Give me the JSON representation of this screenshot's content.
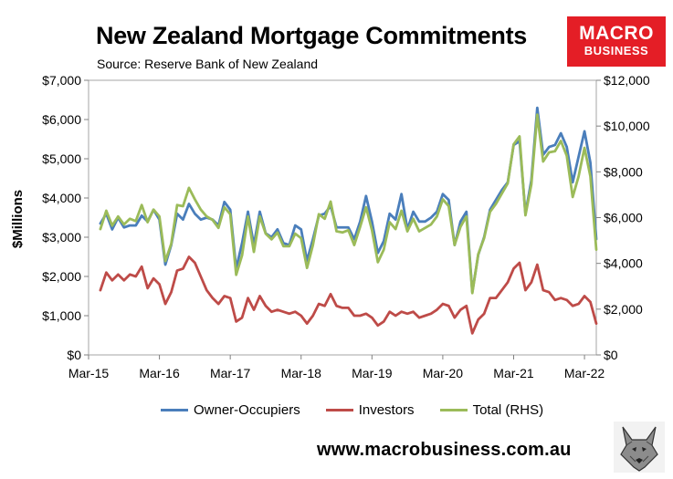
{
  "header": {
    "title": "New Zealand Mortgage Commitments",
    "subtitle": "Source: Reserve Bank of New Zealand"
  },
  "logo": {
    "line1": "MACRO",
    "line2": "BUSINESS",
    "color": "#e41e26"
  },
  "footer": {
    "website": "www.macrobusiness.com.au"
  },
  "chart_data": {
    "type": "line",
    "title": "New Zealand Mortgage Commitments",
    "ylabel": "$Millions",
    "ylim_left": [
      0,
      7000
    ],
    "ylim_right": [
      0,
      12000
    ],
    "yticks_left": [
      "$0",
      "$1,000",
      "$2,000",
      "$3,000",
      "$4,000",
      "$5,000",
      "$6,000",
      "$7,000"
    ],
    "yticks_right": [
      "$0",
      "$2,000",
      "$4,000",
      "$6,000",
      "$8,000",
      "$10,000",
      "$12,000"
    ],
    "xticks": [
      "Mar-15",
      "Mar-16",
      "Mar-17",
      "Mar-18",
      "Mar-19",
      "Mar-20",
      "Mar-21",
      "Mar-22"
    ],
    "x_start": "Jan-15",
    "x_frequency": "monthly",
    "grid": false,
    "legend_position": "bottom",
    "series": [
      {
        "name": "Owner-Occupiers",
        "axis": "left",
        "color": "#4a7ebb",
        "values": [
          3350,
          3600,
          3200,
          3500,
          3250,
          3300,
          3300,
          3550,
          3400,
          3700,
          3450,
          2300,
          2800,
          3600,
          3450,
          3850,
          3600,
          3450,
          3500,
          3450,
          3300,
          3900,
          3700,
          2200,
          2850,
          3650,
          2800,
          3650,
          3100,
          3000,
          3200,
          2850,
          2800,
          3300,
          3200,
          2400,
          2950,
          3550,
          3600,
          3800,
          3250,
          3250,
          3250,
          2950,
          3400,
          4050,
          3400,
          2600,
          2900,
          3600,
          3450,
          4100,
          3200,
          3650,
          3400,
          3400,
          3500,
          3650,
          4100,
          3950,
          2800,
          3400,
          3650,
          1600,
          2550,
          3000,
          3700,
          3950,
          4200,
          4400,
          5350,
          5450,
          3600,
          4450,
          6300,
          5100,
          5300,
          5350,
          5650,
          5300,
          4400,
          5050,
          5700,
          4900,
          2950
        ]
      },
      {
        "name": "Investors",
        "axis": "left",
        "color": "#be4b48",
        "values": [
          1650,
          2100,
          1900,
          2050,
          1900,
          2050,
          2000,
          2250,
          1700,
          1950,
          1800,
          1300,
          1600,
          2150,
          2200,
          2500,
          2350,
          2000,
          1650,
          1450,
          1300,
          1500,
          1450,
          850,
          950,
          1450,
          1150,
          1500,
          1250,
          1100,
          1150,
          1100,
          1050,
          1100,
          1000,
          800,
          1000,
          1300,
          1250,
          1550,
          1250,
          1200,
          1200,
          1000,
          1000,
          1050,
          950,
          750,
          850,
          1100,
          1000,
          1100,
          1050,
          1100,
          950,
          1000,
          1050,
          1150,
          1300,
          1250,
          950,
          1150,
          1250,
          550,
          900,
          1050,
          1450,
          1450,
          1650,
          1850,
          2200,
          2350,
          1650,
          1850,
          2300,
          1650,
          1600,
          1400,
          1450,
          1400,
          1250,
          1300,
          1500,
          1350,
          800
        ]
      },
      {
        "name": "Total (RHS)",
        "axis": "right",
        "color": "#9bbb59",
        "values": [
          5500,
          6300,
          5650,
          6050,
          5700,
          5950,
          5850,
          6550,
          5800,
          6350,
          6050,
          4100,
          4850,
          6550,
          6500,
          7300,
          6800,
          6350,
          6050,
          5900,
          5550,
          6450,
          6150,
          3500,
          4350,
          6050,
          4500,
          6050,
          5300,
          5050,
          5350,
          4750,
          4750,
          5300,
          5100,
          3800,
          4800,
          6150,
          5950,
          6700,
          5400,
          5350,
          5450,
          4800,
          5600,
          6450,
          5450,
          4050,
          4600,
          5800,
          5500,
          6300,
          5400,
          5950,
          5400,
          5550,
          5700,
          6050,
          6800,
          6500,
          4800,
          5600,
          6050,
          2700,
          4400,
          5100,
          6250,
          6600,
          7050,
          7500,
          9200,
          9550,
          6100,
          7450,
          10500,
          8450,
          8850,
          8900,
          9350,
          8700,
          6900,
          7800,
          9050,
          7800,
          4600
        ]
      }
    ]
  }
}
